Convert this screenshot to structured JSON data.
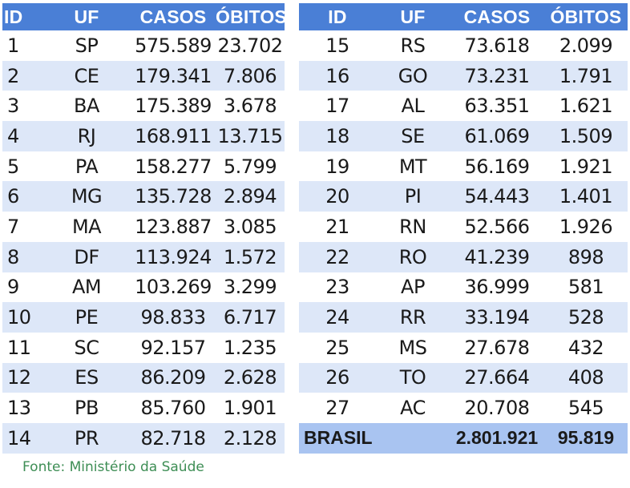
{
  "headers": {
    "id": "ID",
    "uf": "UF",
    "cases": "CASOS",
    "deaths": "ÓBITOS"
  },
  "rows_left": [
    {
      "id": "1",
      "uf": "SP",
      "cases": "575.589",
      "deaths": "23.702"
    },
    {
      "id": "2",
      "uf": "CE",
      "cases": "179.341",
      "deaths": "7.806"
    },
    {
      "id": "3",
      "uf": "BA",
      "cases": "175.389",
      "deaths": "3.678"
    },
    {
      "id": "4",
      "uf": "RJ",
      "cases": "168.911",
      "deaths": "13.715"
    },
    {
      "id": "5",
      "uf": "PA",
      "cases": "158.277",
      "deaths": "5.799"
    },
    {
      "id": "6",
      "uf": "MG",
      "cases": "135.728",
      "deaths": "2.894"
    },
    {
      "id": "7",
      "uf": "MA",
      "cases": "123.887",
      "deaths": "3.085"
    },
    {
      "id": "8",
      "uf": "DF",
      "cases": "113.924",
      "deaths": "1.572"
    },
    {
      "id": "9",
      "uf": "AM",
      "cases": "103.269",
      "deaths": "3.299"
    },
    {
      "id": "10",
      "uf": "PE",
      "cases": "98.833",
      "deaths": "6.717"
    },
    {
      "id": "11",
      "uf": "SC",
      "cases": "92.157",
      "deaths": "1.235"
    },
    {
      "id": "12",
      "uf": "ES",
      "cases": "86.209",
      "deaths": "2.628"
    },
    {
      "id": "13",
      "uf": "PB",
      "cases": "85.760",
      "deaths": "1.901"
    },
    {
      "id": "14",
      "uf": "PR",
      "cases": "82.718",
      "deaths": "2.128"
    }
  ],
  "rows_right": [
    {
      "id": "15",
      "uf": "RS",
      "cases": "73.618",
      "deaths": "2.099"
    },
    {
      "id": "16",
      "uf": "GO",
      "cases": "73.231",
      "deaths": "1.791"
    },
    {
      "id": "17",
      "uf": "AL",
      "cases": "63.351",
      "deaths": "1.621"
    },
    {
      "id": "18",
      "uf": "SE",
      "cases": "61.069",
      "deaths": "1.509"
    },
    {
      "id": "19",
      "uf": "MT",
      "cases": "56.169",
      "deaths": "1.921"
    },
    {
      "id": "20",
      "uf": "PI",
      "cases": "54.443",
      "deaths": "1.401"
    },
    {
      "id": "21",
      "uf": "RN",
      "cases": "52.566",
      "deaths": "1.926"
    },
    {
      "id": "22",
      "uf": "RO",
      "cases": "41.239",
      "deaths": "898"
    },
    {
      "id": "23",
      "uf": "AP",
      "cases": "36.999",
      "deaths": "581"
    },
    {
      "id": "24",
      "uf": "RR",
      "cases": "33.194",
      "deaths": "528"
    },
    {
      "id": "25",
      "uf": "MS",
      "cases": "27.678",
      "deaths": "432"
    },
    {
      "id": "26",
      "uf": "TO",
      "cases": "27.664",
      "deaths": "408"
    },
    {
      "id": "27",
      "uf": "AC",
      "cases": "20.708",
      "deaths": "545"
    }
  ],
  "total": {
    "label": "BRASIL",
    "cases": "2.801.921",
    "deaths": "95.819"
  },
  "source": "Fonte: Ministério da Saúde",
  "colors": {
    "header_bg": "#4a7fd6",
    "stripe": "#dde7f8",
    "total_bg": "#a9c4f1",
    "source_text": "#3e8e55"
  }
}
